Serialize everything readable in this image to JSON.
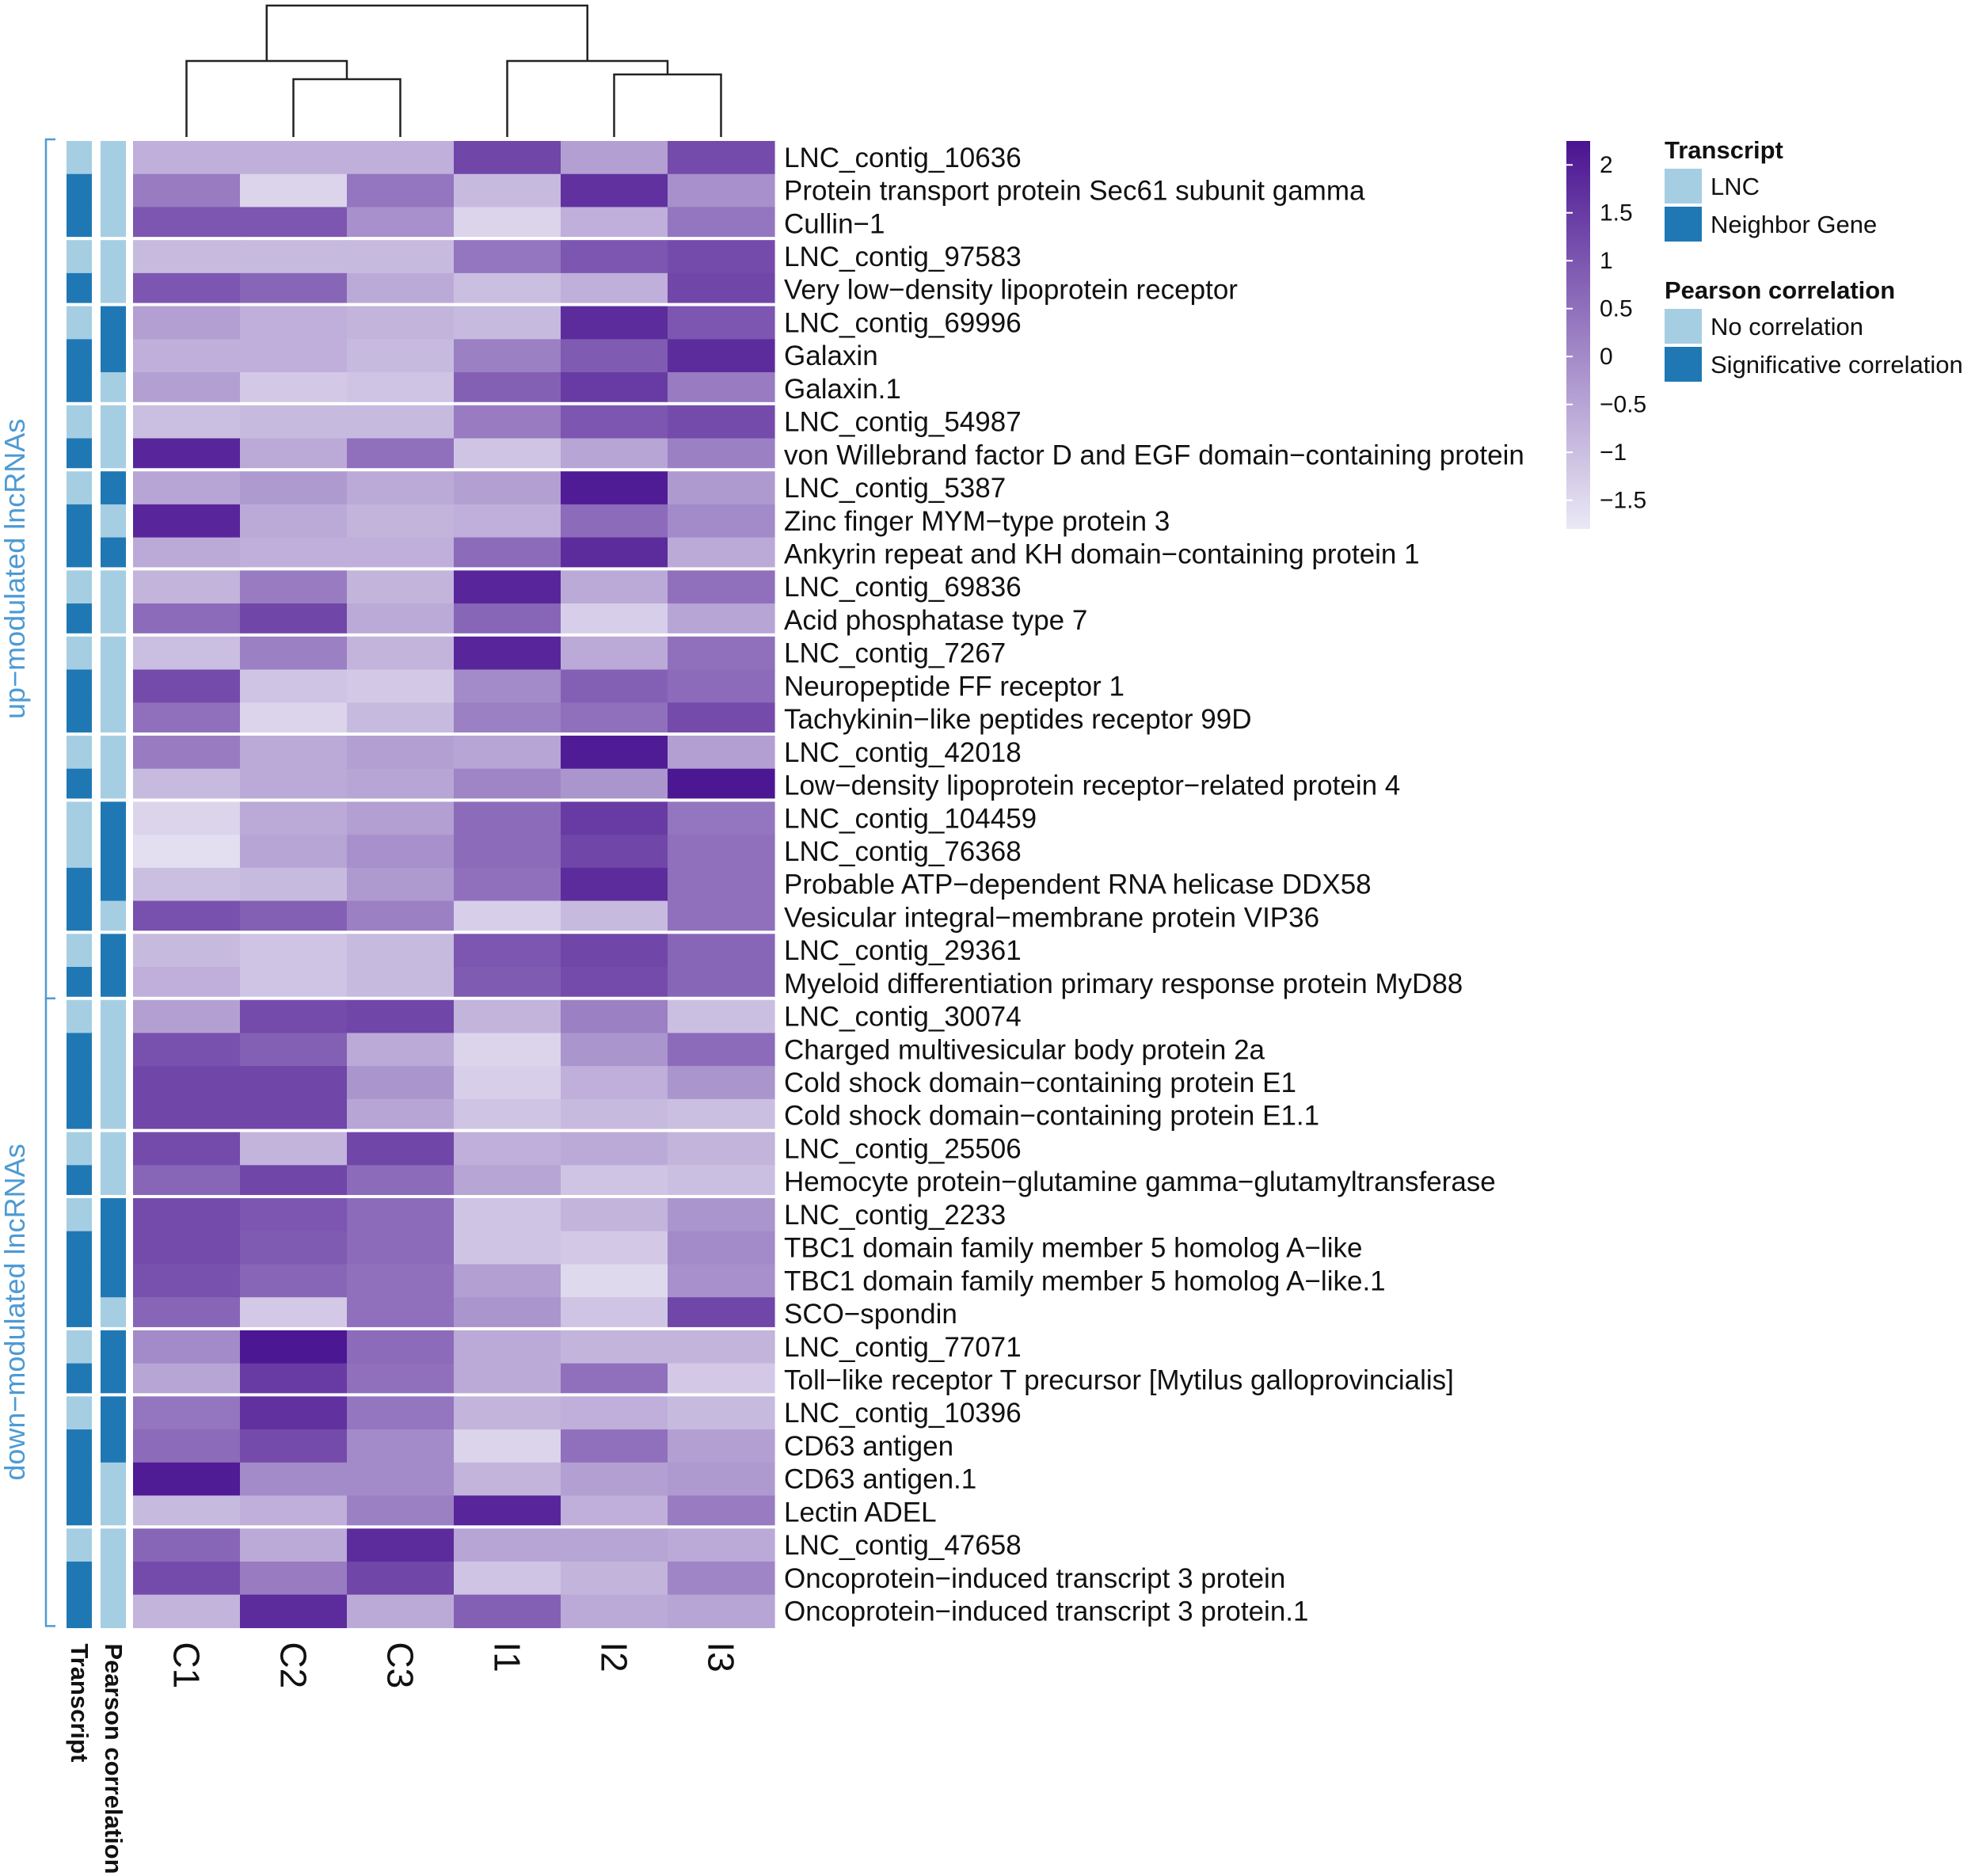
{
  "chart_data": {
    "type": "heatmap",
    "title": "",
    "columns": [
      "C1",
      "C2",
      "C3",
      "I1",
      "I2",
      "I3"
    ],
    "column_dendrogram": "((C1,(C2,C3)),(I1,(I2,I3)))",
    "rows": [
      {
        "label": "LNC_contig_10636",
        "transcript": "LNC",
        "pearson": "No correlation",
        "values": [
          -0.7,
          -0.7,
          -0.7,
          1.3,
          -0.4,
          1.2
        ]
      },
      {
        "label": "Protein transport protein Sec61 subunit gamma",
        "transcript": "Neighbor Gene",
        "pearson": "No correlation",
        "values": [
          0.3,
          -1.4,
          0.4,
          -0.9,
          1.7,
          -0.1
        ]
      },
      {
        "label": "Cullin−1",
        "transcript": "Neighbor Gene",
        "pearson": "No correlation",
        "values": [
          1.0,
          1.0,
          -0.1,
          -1.4,
          -0.7,
          0.4
        ]
      },
      {
        "label": "LNC_contig_97583",
        "transcript": "LNC",
        "pearson": "No correlation",
        "values": [
          -0.9,
          -0.9,
          -0.9,
          0.4,
          1.0,
          1.2
        ]
      },
      {
        "label": "Very low−density lipoprotein receptor",
        "transcript": "Neighbor Gene",
        "pearson": "No correlation",
        "values": [
          1.0,
          0.7,
          -0.6,
          -1.0,
          -0.7,
          1.3
        ]
      },
      {
        "label": "LNC_contig_69996",
        "transcript": "LNC",
        "pearson": "Significative correlation",
        "values": [
          -0.4,
          -0.7,
          -0.8,
          -0.9,
          1.8,
          1.0
        ]
      },
      {
        "label": "Galaxin",
        "transcript": "Neighbor Gene",
        "pearson": "Significative correlation",
        "values": [
          -0.7,
          -0.7,
          -0.9,
          0.2,
          0.9,
          1.8
        ]
      },
      {
        "label": "Galaxin.1",
        "transcript": "Neighbor Gene",
        "pearson": "No correlation",
        "values": [
          -0.4,
          -1.2,
          -1.1,
          0.8,
          1.5,
          0.3
        ]
      },
      {
        "label": "LNC_contig_54987",
        "transcript": "LNC",
        "pearson": "No correlation",
        "values": [
          -1.0,
          -0.9,
          -0.9,
          0.3,
          1.0,
          1.2
        ]
      },
      {
        "label": "von Willebrand factor D and EGF domain−containing protein",
        "transcript": "Neighbor Gene",
        "pearson": "No correlation",
        "values": [
          1.9,
          -0.6,
          0.5,
          -1.1,
          -0.5,
          0.2
        ]
      },
      {
        "label": "LNC_contig_5387",
        "transcript": "LNC",
        "pearson": "Significative correlation",
        "values": [
          -0.5,
          -0.3,
          -0.6,
          -0.4,
          2.1,
          -0.3
        ]
      },
      {
        "label": "Zinc finger MYM−type protein 3",
        "transcript": "Neighbor Gene",
        "pearson": "No correlation",
        "values": [
          1.9,
          -0.6,
          -0.8,
          -0.7,
          0.6,
          0.0
        ]
      },
      {
        "label": "Ankyrin repeat and KH domain−containing protein 1",
        "transcript": "Neighbor Gene",
        "pearson": "Significative correlation",
        "values": [
          -0.6,
          -0.7,
          -0.7,
          0.6,
          1.8,
          -0.6
        ]
      },
      {
        "label": "LNC_contig_69836",
        "transcript": "LNC",
        "pearson": "No correlation",
        "values": [
          -0.8,
          0.3,
          -0.8,
          1.9,
          -0.6,
          0.5
        ]
      },
      {
        "label": "Acid phosphatase type 7",
        "transcript": "Neighbor Gene",
        "pearson": "No correlation",
        "values": [
          0.6,
          1.3,
          -0.6,
          0.7,
          -1.3,
          -0.5
        ]
      },
      {
        "label": "LNC_contig_7267",
        "transcript": "LNC",
        "pearson": "No correlation",
        "values": [
          -1.0,
          0.2,
          -0.8,
          1.9,
          -0.6,
          0.5
        ]
      },
      {
        "label": "Neuropeptide FF receptor 1",
        "transcript": "Neighbor Gene",
        "pearson": "No correlation",
        "values": [
          1.2,
          -1.1,
          -1.2,
          0.0,
          0.8,
          0.6
        ]
      },
      {
        "label": "Tachykinin−like peptides receptor 99D",
        "transcript": "Neighbor Gene",
        "pearson": "No correlation",
        "values": [
          0.5,
          -1.4,
          -0.9,
          0.2,
          0.5,
          1.2
        ]
      },
      {
        "label": "LNC_contig_42018",
        "transcript": "LNC",
        "pearson": "No correlation",
        "values": [
          0.3,
          -0.6,
          -0.4,
          -0.5,
          2.1,
          -0.4
        ]
      },
      {
        "label": "Low−density lipoprotein receptor−related protein 4",
        "transcript": "Neighbor Gene",
        "pearson": "No correlation",
        "values": [
          -0.9,
          -0.6,
          -0.5,
          0.1,
          -0.2,
          2.2
        ]
      },
      {
        "label": "LNC_contig_104459",
        "transcript": "LNC",
        "pearson": "Significative correlation",
        "values": [
          -1.4,
          -0.6,
          -0.4,
          0.6,
          1.5,
          0.4
        ]
      },
      {
        "label": "LNC_contig_76368",
        "transcript": "LNC",
        "pearson": "Significative correlation",
        "values": [
          -1.6,
          -0.5,
          -0.1,
          0.6,
          1.3,
          0.5
        ]
      },
      {
        "label": "Probable ATP−dependent RNA helicase DDX58",
        "transcript": "Neighbor Gene",
        "pearson": "Significative correlation",
        "values": [
          -1.0,
          -0.9,
          -0.3,
          0.5,
          1.8,
          0.5
        ]
      },
      {
        "label": "Vesicular integral−membrane protein VIP36",
        "transcript": "Neighbor Gene",
        "pearson": "No correlation",
        "values": [
          1.1,
          0.8,
          0.2,
          -1.3,
          -0.9,
          0.5
        ]
      },
      {
        "label": "LNC_contig_29361",
        "transcript": "LNC",
        "pearson": "Significative correlation",
        "values": [
          -0.9,
          -1.1,
          -0.9,
          1.0,
          1.3,
          0.7
        ]
      },
      {
        "label": "Myeloid differentiation primary response protein MyD88",
        "transcript": "Neighbor Gene",
        "pearson": "Significative correlation",
        "values": [
          -0.7,
          -1.1,
          -0.9,
          0.9,
          1.2,
          0.7
        ]
      },
      {
        "label": "LNC_contig_30074",
        "transcript": "LNC",
        "pearson": "No correlation",
        "values": [
          -0.4,
          1.2,
          1.3,
          -0.8,
          0.2,
          -1.0
        ]
      },
      {
        "label": "Charged multivesicular body protein 2a",
        "transcript": "Neighbor Gene",
        "pearson": "No correlation",
        "values": [
          1.1,
          0.8,
          -0.6,
          -1.4,
          -0.2,
          0.6
        ]
      },
      {
        "label": "Cold shock domain−containing protein E1",
        "transcript": "Neighbor Gene",
        "pearson": "No correlation",
        "values": [
          1.3,
          1.3,
          -0.2,
          -1.3,
          -0.7,
          -0.2
        ]
      },
      {
        "label": "Cold shock domain−containing protein E1.1",
        "transcript": "Neighbor Gene",
        "pearson": "No correlation",
        "values": [
          1.3,
          1.3,
          -0.5,
          -1.1,
          -0.9,
          -1.0
        ]
      },
      {
        "label": "LNC_contig_25506",
        "transcript": "LNC",
        "pearson": "No correlation",
        "values": [
          1.2,
          -0.8,
          1.3,
          -0.7,
          -0.6,
          -0.8
        ]
      },
      {
        "label": "Hemocyte protein−glutamine gamma−glutamyltransferase",
        "transcript": "Neighbor Gene",
        "pearson": "No correlation",
        "values": [
          0.7,
          1.3,
          0.6,
          -0.5,
          -1.1,
          -1.0
        ]
      },
      {
        "label": "LNC_contig_2233",
        "transcript": "LNC",
        "pearson": "Significative correlation",
        "values": [
          1.2,
          1.0,
          0.6,
          -1.1,
          -0.8,
          -0.2
        ]
      },
      {
        "label": "TBC1 domain family member 5 homolog A−like",
        "transcript": "Neighbor Gene",
        "pearson": "Significative correlation",
        "values": [
          1.2,
          0.9,
          0.6,
          -1.1,
          -1.2,
          0.0
        ]
      },
      {
        "label": "TBC1 domain family member 5 homolog A−like.1",
        "transcript": "Neighbor Gene",
        "pearson": "Significative correlation",
        "values": [
          1.1,
          0.7,
          0.5,
          -0.4,
          -1.5,
          -0.1
        ]
      },
      {
        "label": "SCO−spondin",
        "transcript": "Neighbor Gene",
        "pearson": "No correlation",
        "values": [
          0.7,
          -1.2,
          0.5,
          -0.2,
          -1.1,
          1.3
        ]
      },
      {
        "label": "LNC_contig_77071",
        "transcript": "LNC",
        "pearson": "Significative correlation",
        "values": [
          0.0,
          2.2,
          0.6,
          -0.6,
          -0.8,
          -0.8
        ]
      },
      {
        "label": "Toll−like receptor T precursor [Mytilus galloprovincialis]",
        "transcript": "Neighbor Gene",
        "pearson": "Significative correlation",
        "values": [
          -0.5,
          1.5,
          0.5,
          -0.6,
          0.5,
          -1.2
        ]
      },
      {
        "label": "LNC_contig_10396",
        "transcript": "LNC",
        "pearson": "Significative correlation",
        "values": [
          0.4,
          1.7,
          0.4,
          -0.8,
          -0.7,
          -0.9
        ]
      },
      {
        "label": "CD63 antigen",
        "transcript": "Neighbor Gene",
        "pearson": "Significative correlation",
        "values": [
          0.6,
          1.2,
          0.0,
          -1.4,
          0.5,
          -0.4
        ]
      },
      {
        "label": "CD63 antigen.1",
        "transcript": "Neighbor Gene",
        "pearson": "No correlation",
        "values": [
          2.1,
          0.0,
          0.0,
          -0.8,
          -0.4,
          -0.3
        ]
      },
      {
        "label": "Lectin ADEL",
        "transcript": "Neighbor Gene",
        "pearson": "No correlation",
        "values": [
          -0.9,
          -0.7,
          0.2,
          1.9,
          -0.7,
          0.3
        ]
      },
      {
        "label": "LNC_contig_47658",
        "transcript": "LNC",
        "pearson": "No correlation",
        "values": [
          0.7,
          -0.6,
          1.8,
          -0.5,
          -0.5,
          -0.6
        ]
      },
      {
        "label": "Oncoprotein−induced transcript 3 protein",
        "transcript": "Neighbor Gene",
        "pearson": "No correlation",
        "values": [
          1.2,
          0.3,
          1.3,
          -1.1,
          -0.8,
          0.1
        ]
      },
      {
        "label": "Oncoprotein−induced transcript 3 protein.1",
        "transcript": "Neighbor Gene",
        "pearson": "No correlation",
        "values": [
          -0.8,
          1.8,
          -0.6,
          0.8,
          -0.6,
          -0.5
        ]
      }
    ],
    "row_gaps_after": [
      2,
      4,
      7,
      9,
      12,
      14,
      17,
      19,
      23,
      25,
      29,
      31,
      35,
      37,
      41
    ],
    "groups": [
      {
        "label": "up−modulated lncRNAs",
        "start": 0,
        "end": 25
      },
      {
        "label": "down−modulated lncRNAs",
        "start": 26,
        "end": 44
      }
    ],
    "annotation_columns": [
      "Transcript",
      "Pearson correlation"
    ],
    "colorbar": {
      "min": -1.8,
      "max": 2.25,
      "ticks": [
        2,
        1.5,
        1,
        0.5,
        0,
        -0.5,
        -1,
        -1.5
      ],
      "tick_labels": [
        "2",
        "1.5",
        "1",
        "0.5",
        "0",
        "−0.5",
        "−1",
        "−1.5"
      ],
      "color_low": "#ebe9f5",
      "color_high": "#4a1491"
    },
    "legend": [
      {
        "title": "Transcript",
        "items": [
          {
            "label": "LNC",
            "color": "#a6cee3"
          },
          {
            "label": "Neighbor Gene",
            "color": "#1f78b4"
          }
        ]
      },
      {
        "title": "Pearson correlation",
        "items": [
          {
            "label": "No correlation",
            "color": "#a6cee3"
          },
          {
            "label": "Significative correlation",
            "color": "#1f78b4"
          }
        ]
      }
    ],
    "colors": {
      "group_label": "#4e9ad3",
      "light_annotation": "#a6cee3",
      "dark_annotation": "#1f78b4"
    }
  }
}
